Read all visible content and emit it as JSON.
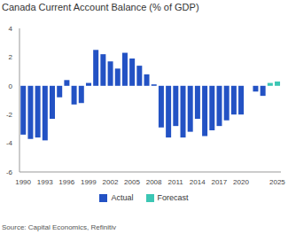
{
  "chart_data": {
    "type": "bar",
    "title": "Canada Current Account Balance (% of GDP)",
    "source": "Source: Capital Economics, Refinitiv",
    "categories": [
      "1990",
      null,
      null,
      "1993",
      null,
      null,
      "1996",
      null,
      null,
      "1999",
      null,
      null,
      "2002",
      null,
      null,
      "2005",
      null,
      null,
      "2008",
      null,
      null,
      "2011",
      null,
      null,
      "2014",
      null,
      null,
      "2017",
      null,
      null,
      "2020",
      null,
      null,
      null,
      null,
      "2025"
    ],
    "series": [
      {
        "name": "Actual",
        "color": "#2352c4",
        "values": [
          -3.4,
          -3.7,
          -3.6,
          -3.8,
          -2.3,
          -0.8,
          0.4,
          -1.3,
          -1.2,
          0.2,
          2.5,
          2.2,
          1.7,
          1.2,
          2.3,
          1.9,
          1.4,
          0.8,
          0.1,
          -2.9,
          -3.6,
          -2.8,
          -3.6,
          -3.2,
          -2.3,
          -3.5,
          -3.1,
          -2.8,
          -2.4,
          -2.0,
          -2.0,
          0.0,
          -0.4,
          -0.7,
          null,
          null
        ]
      },
      {
        "name": "Forecast",
        "color": "#3cc6b4",
        "values": [
          null,
          null,
          null,
          null,
          null,
          null,
          null,
          null,
          null,
          null,
          null,
          null,
          null,
          null,
          null,
          null,
          null,
          null,
          null,
          null,
          null,
          null,
          null,
          null,
          null,
          null,
          null,
          null,
          null,
          null,
          null,
          null,
          null,
          null,
          0.2,
          0.3
        ]
      }
    ],
    "ylim": [
      -6,
      4
    ],
    "yticks": [
      -6,
      -4,
      -2,
      0,
      2,
      4
    ],
    "grid": false,
    "legend": "bottom"
  }
}
